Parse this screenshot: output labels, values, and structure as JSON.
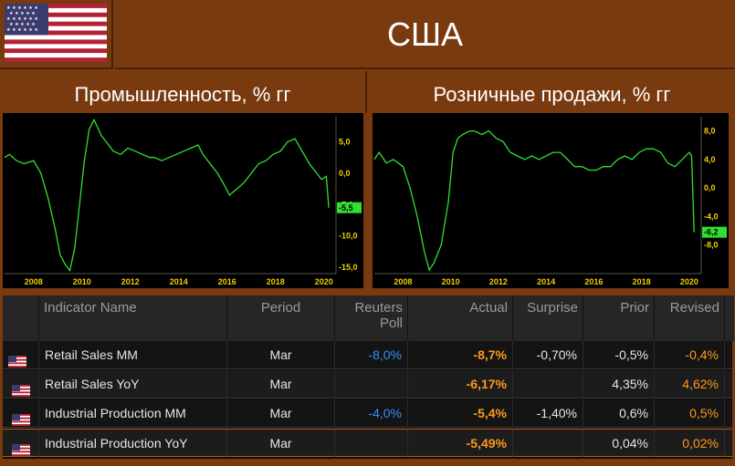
{
  "header": {
    "country": "США"
  },
  "panels": {
    "left_title": "Промышленность, % гг",
    "right_title": "Розничные продажи, % гг"
  },
  "chart_data": [
    {
      "type": "line",
      "title": "Промышленность, % гг",
      "x_tick_labels": [
        "2008",
        "2010",
        "2012",
        "2014",
        "2016",
        "2018",
        "2020"
      ],
      "y_tick_labels": [
        "5,0",
        "0,0",
        "-5,0",
        "-10,0",
        "-15,0"
      ],
      "ylim": [
        -16,
        9
      ],
      "xlim": [
        2006.8,
        2020.5
      ],
      "last_value_label": "-5,5",
      "series": [
        {
          "color": "#30e030",
          "x": [
            2006.8,
            2007,
            2007.3,
            2007.6,
            2008,
            2008.3,
            2008.6,
            2008.9,
            2009.1,
            2009.3,
            2009.5,
            2009.7,
            2009.9,
            2010.1,
            2010.3,
            2010.5,
            2010.8,
            2011,
            2011.3,
            2011.6,
            2011.9,
            2012.2,
            2012.5,
            2012.8,
            2013,
            2013.3,
            2013.6,
            2013.9,
            2014.2,
            2014.5,
            2014.8,
            2015,
            2015.3,
            2015.6,
            2015.9,
            2016.1,
            2016.4,
            2016.7,
            2017,
            2017.3,
            2017.6,
            2017.9,
            2018.2,
            2018.5,
            2018.8,
            2019.1,
            2019.4,
            2019.7,
            2019.9,
            2020.1,
            2020.2
          ],
          "y": [
            2.5,
            3,
            2,
            1.5,
            2,
            0,
            -4,
            -9,
            -13,
            -14.5,
            -15.5,
            -12,
            -5,
            2,
            7,
            8.5,
            6,
            5,
            3.5,
            3,
            4,
            3.5,
            3,
            2.5,
            2.5,
            2,
            2.5,
            3,
            3.5,
            4,
            4.5,
            3,
            1.5,
            0,
            -2,
            -3.5,
            -2.5,
            -1.5,
            0,
            1.5,
            2,
            3,
            3.5,
            5,
            5.5,
            3.5,
            1.5,
            0,
            -1,
            -0.5,
            -5.5
          ]
        }
      ]
    },
    {
      "type": "line",
      "title": "Розничные продажи, % гг",
      "x_tick_labels": [
        "2008",
        "2010",
        "2012",
        "2014",
        "2016",
        "2018",
        "2020"
      ],
      "y_tick_labels": [
        "8,0",
        "4,0",
        "0,0",
        "-4,0",
        "-8,0"
      ],
      "ylim": [
        -12,
        10
      ],
      "xlim": [
        2006.8,
        2020.5
      ],
      "last_value_label": "-6,2",
      "series": [
        {
          "color": "#30e030",
          "x": [
            2006.8,
            2007,
            2007.3,
            2007.6,
            2008,
            2008.3,
            2008.6,
            2008.9,
            2009.1,
            2009.3,
            2009.6,
            2009.9,
            2010.1,
            2010.3,
            2010.5,
            2010.8,
            2011,
            2011.3,
            2011.6,
            2011.9,
            2012.2,
            2012.5,
            2012.8,
            2013.1,
            2013.4,
            2013.7,
            2014,
            2014.3,
            2014.6,
            2014.9,
            2015.2,
            2015.5,
            2015.8,
            2016.1,
            2016.4,
            2016.7,
            2017,
            2017.3,
            2017.6,
            2017.9,
            2018.2,
            2018.5,
            2018.8,
            2019.1,
            2019.4,
            2019.7,
            2020,
            2020.1,
            2020.2
          ],
          "y": [
            4,
            5,
            3.5,
            4,
            3,
            0,
            -4,
            -9,
            -11.5,
            -10.5,
            -8,
            -2,
            5,
            7,
            7.5,
            8,
            8,
            7.5,
            8,
            7,
            6.5,
            5,
            4.5,
            4,
            4.5,
            4,
            4.5,
            5,
            5,
            4,
            3,
            3,
            2.5,
            2.5,
            3,
            3,
            4,
            4.5,
            4,
            5,
            5.5,
            5.5,
            5,
            3.5,
            3,
            4,
            5,
            4.5,
            -6.2
          ]
        }
      ]
    }
  ],
  "table": {
    "headers": {
      "indicator": "Indicator Name",
      "period": "Period",
      "poll": "Reuters Poll",
      "actual": "Actual",
      "surprise": "Surprise",
      "prior": "Prior",
      "revised": "Revised"
    },
    "rows": [
      {
        "name": "Retail Sales MM",
        "period": "Mar",
        "poll": "-8,0%",
        "actual": "-8,7%",
        "surprise": "-0,70%",
        "prior": "-0,5%",
        "revised": "-0,4%"
      },
      {
        "name": "Retail Sales YoY",
        "period": "Mar",
        "poll": "",
        "actual": "-6,17%",
        "surprise": "",
        "prior": "4,35%",
        "revised": "4,62%"
      },
      {
        "name": "Industrial Production MM",
        "period": "Mar",
        "poll": "-4,0%",
        "actual": "-5,4%",
        "surprise": "-1,40%",
        "prior": "0,6%",
        "revised": "0,5%"
      },
      {
        "name": "Industrial Production YoY",
        "period": "Mar",
        "poll": "",
        "actual": "-5,49%",
        "surprise": "",
        "prior": "0,04%",
        "revised": "0,02%"
      }
    ]
  }
}
